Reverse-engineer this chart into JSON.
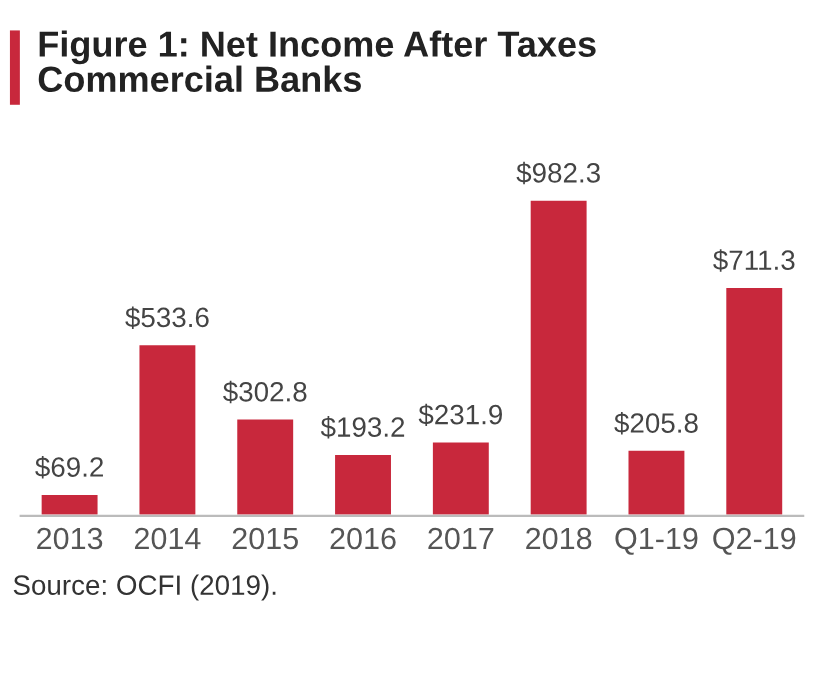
{
  "chart_data": {
    "type": "bar",
    "title": "Figure 1: Net Income After Taxes\nCommercial Banks",
    "categories": [
      "2013",
      "2014",
      "2015",
      "2016",
      "2017",
      "2018",
      "Q1-19",
      "Q2-19"
    ],
    "values": [
      69.2,
      533.6,
      302.8,
      193.2,
      231.9,
      982.3,
      205.8,
      711.3
    ],
    "value_labels": [
      "$69.2",
      "$533.6",
      "$302.8",
      "$193.2",
      "$231.9",
      "$982.3",
      "$205.8",
      "$711.3"
    ],
    "color": "#c8283c",
    "annotations": [
      "Source: OCFI (2019)."
    ]
  }
}
